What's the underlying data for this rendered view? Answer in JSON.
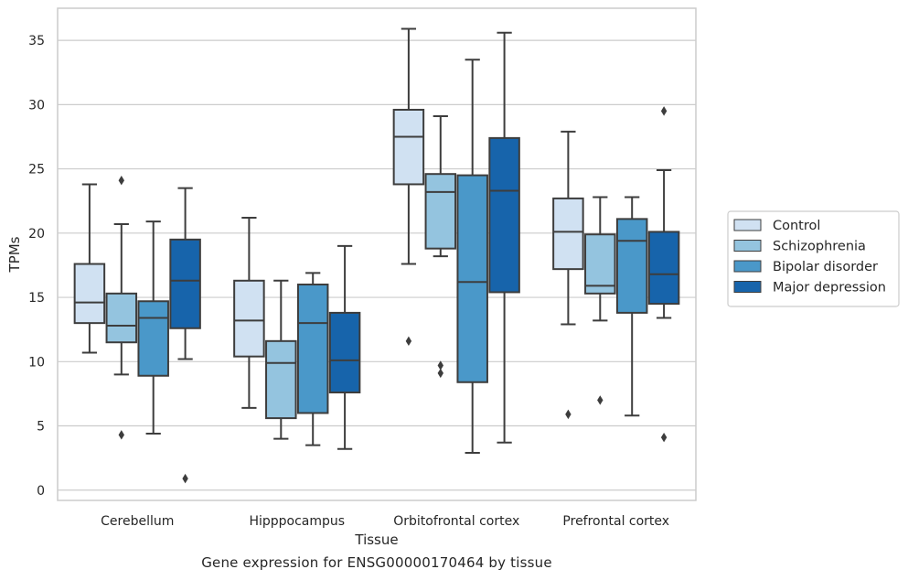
{
  "caption": "Gene expression for ENSG00000170464 by tissue",
  "chart_data": {
    "type": "box",
    "xlabel": "Tissue",
    "ylabel": "TPMs",
    "categories": [
      "Cerebellum",
      "Hipppocampus",
      "Orbitofrontal cortex",
      "Prefrontal cortex"
    ],
    "ylim": [
      -0.8,
      37.5
    ],
    "yticks": [
      0,
      5,
      10,
      15,
      20,
      25,
      30,
      35
    ],
    "grid": true,
    "legend_position": "right",
    "series": [
      {
        "name": "Control",
        "color": "#d0e1f2",
        "boxes": [
          {
            "whislo": 10.7,
            "q1": 13.0,
            "med": 14.6,
            "q3": 17.6,
            "whishi": 23.8,
            "fliers": []
          },
          {
            "whislo": 6.4,
            "q1": 10.4,
            "med": 13.2,
            "q3": 16.3,
            "whishi": 21.2,
            "fliers": []
          },
          {
            "whislo": 17.6,
            "q1": 23.8,
            "med": 27.5,
            "q3": 29.6,
            "whishi": 35.9,
            "fliers": [
              11.6
            ]
          },
          {
            "whislo": 12.9,
            "q1": 17.2,
            "med": 20.1,
            "q3": 22.7,
            "whishi": 27.9,
            "fliers": [
              5.9
            ]
          }
        ]
      },
      {
        "name": "Schizophrenia",
        "color": "#94c4df",
        "boxes": [
          {
            "whislo": 9.0,
            "q1": 11.5,
            "med": 12.8,
            "q3": 15.3,
            "whishi": 20.7,
            "fliers": [
              24.1,
              4.3
            ]
          },
          {
            "whislo": 4.0,
            "q1": 5.6,
            "med": 9.9,
            "q3": 11.6,
            "whishi": 16.3,
            "fliers": []
          },
          {
            "whislo": 18.2,
            "q1": 18.8,
            "med": 23.2,
            "q3": 24.6,
            "whishi": 29.1,
            "fliers": [
              9.7,
              9.1
            ]
          },
          {
            "whislo": 13.2,
            "q1": 15.3,
            "med": 15.9,
            "q3": 19.9,
            "whishi": 22.8,
            "fliers": [
              7.0
            ]
          }
        ]
      },
      {
        "name": "Bipolar disorder",
        "color": "#4a98c9",
        "boxes": [
          {
            "whislo": 4.4,
            "q1": 8.9,
            "med": 13.4,
            "q3": 14.7,
            "whishi": 20.9,
            "fliers": []
          },
          {
            "whislo": 3.5,
            "q1": 6.0,
            "med": 13.0,
            "q3": 16.0,
            "whishi": 16.9,
            "fliers": []
          },
          {
            "whislo": 2.9,
            "q1": 8.4,
            "med": 16.2,
            "q3": 24.5,
            "whishi": 33.5,
            "fliers": []
          },
          {
            "whislo": 5.8,
            "q1": 13.8,
            "med": 19.4,
            "q3": 21.1,
            "whishi": 22.8,
            "fliers": []
          }
        ]
      },
      {
        "name": "Major depression",
        "color": "#1764ab",
        "boxes": [
          {
            "whislo": 10.2,
            "q1": 12.6,
            "med": 16.3,
            "q3": 19.5,
            "whishi": 23.5,
            "fliers": [
              0.9
            ]
          },
          {
            "whislo": 3.2,
            "q1": 7.6,
            "med": 10.1,
            "q3": 13.8,
            "whishi": 19.0,
            "fliers": []
          },
          {
            "whislo": 3.7,
            "q1": 15.4,
            "med": 23.3,
            "q3": 27.4,
            "whishi": 35.6,
            "fliers": []
          },
          {
            "whislo": 13.4,
            "q1": 14.5,
            "med": 16.8,
            "q3": 20.1,
            "whishi": 24.9,
            "fliers": [
              29.5,
              4.1
            ]
          }
        ]
      }
    ]
  }
}
